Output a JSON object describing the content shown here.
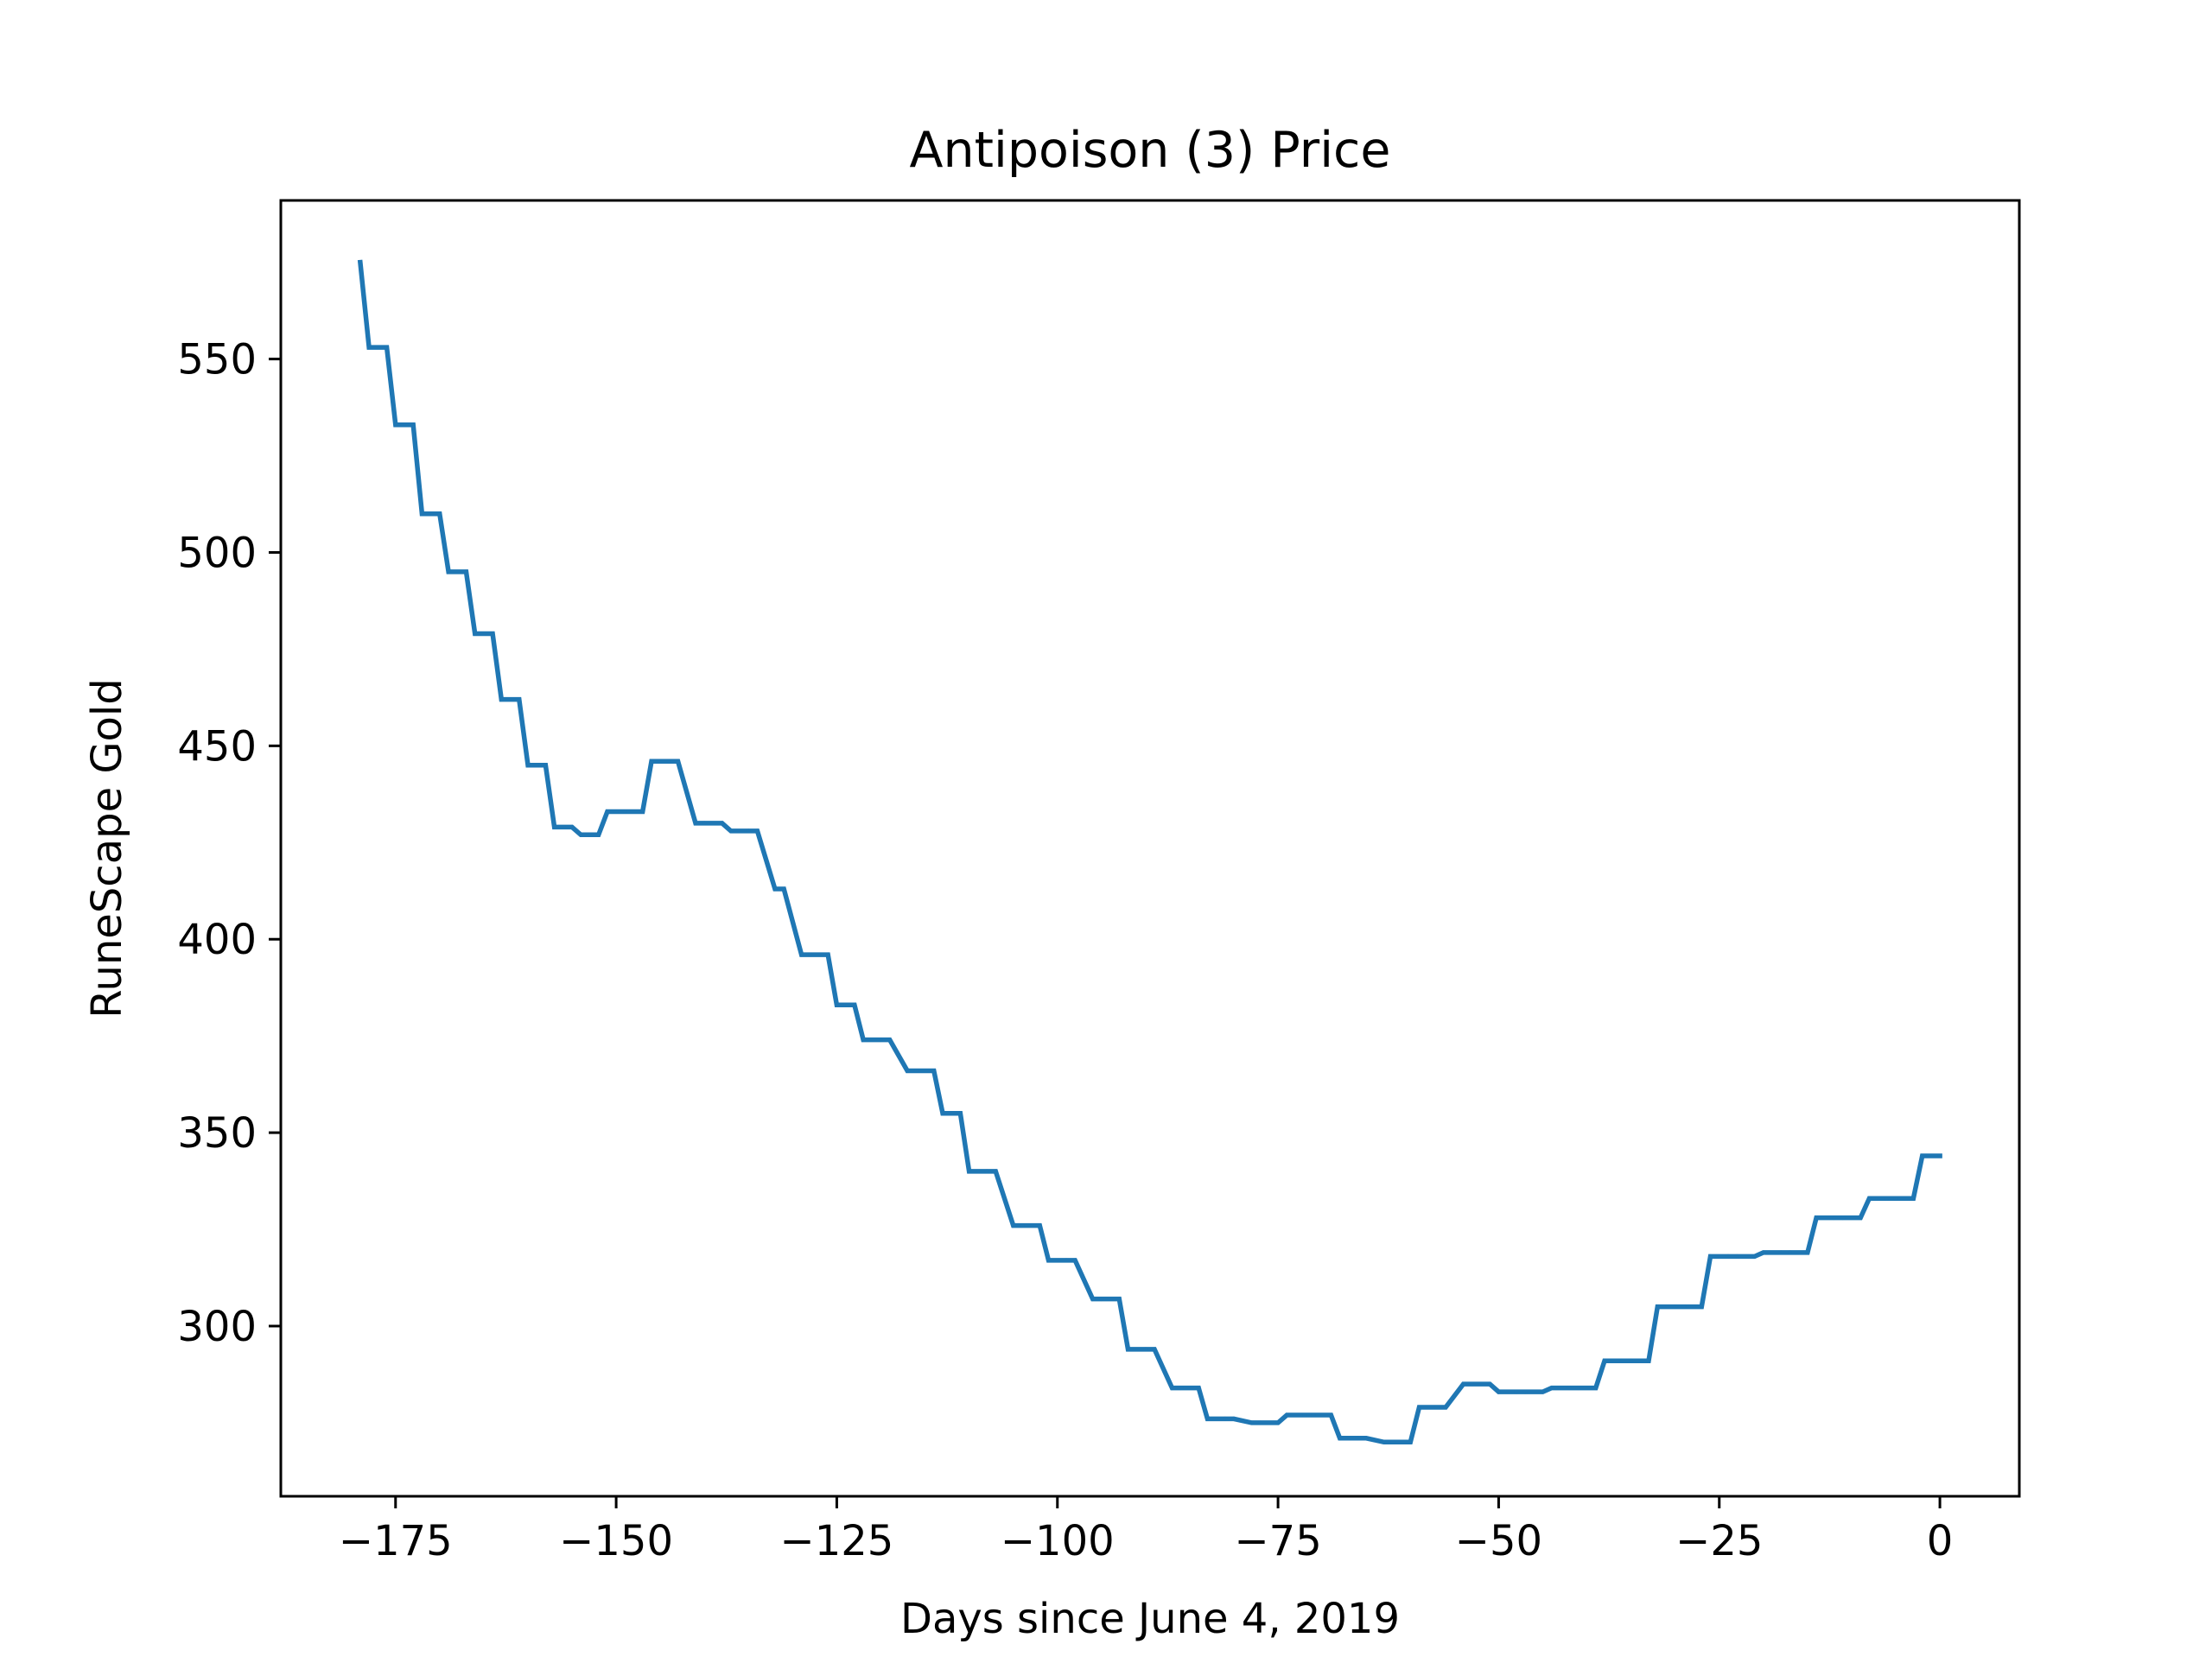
{
  "chart_data": {
    "type": "line",
    "title": "Antipoison (3) Price",
    "xlabel": "Days since June 4, 2019",
    "ylabel": "RuneScape Gold",
    "xlim": [
      -188,
      9
    ],
    "ylim": [
      256,
      591
    ],
    "xticks": [
      -175,
      -150,
      -125,
      -100,
      -75,
      -50,
      -25,
      0
    ],
    "xtick_labels": [
      "−175",
      "−150",
      "−125",
      "−100",
      "−75",
      "−50",
      "−25",
      "0"
    ],
    "yticks": [
      300,
      350,
      400,
      450,
      500,
      550
    ],
    "ytick_labels": [
      "300",
      "350",
      "400",
      "450",
      "500",
      "550"
    ],
    "grid": false,
    "line_color": "#1f77b4",
    "x": [
      -179,
      -178,
      -176,
      -175,
      -173,
      -172,
      -170,
      -169,
      -167,
      -166,
      -164,
      -163,
      -161,
      -160,
      -158,
      -157,
      -155,
      -154,
      -153,
      -152,
      -151,
      -150,
      -149,
      -147,
      -146,
      -144,
      -143,
      -141,
      -140,
      -138,
      -137,
      -135,
      -134,
      -132,
      -131,
      -129,
      -128,
      -126,
      -125,
      -123,
      -122,
      -120,
      -119,
      -117,
      -116,
      -114,
      -113,
      -111,
      -110,
      -108,
      -107,
      -105,
      -104,
      -102,
      -101,
      -99,
      -98,
      -96,
      -95,
      -93,
      -92,
      -90,
      -89,
      -87,
      -86,
      -84,
      -83,
      -81,
      -80,
      -78,
      -77,
      -75,
      -74,
      -72,
      -71,
      -69,
      -68,
      -66,
      -65,
      -63,
      -62,
      -60,
      -59,
      -57,
      -56,
      -54,
      -53,
      -51,
      -50,
      -48,
      -47,
      -45,
      -44,
      -42,
      -41,
      -39,
      -38,
      -36,
      -35,
      -33,
      -32,
      -30,
      -29,
      -27,
      -26,
      -24,
      -23,
      -21,
      -20,
      -18,
      -17,
      -15,
      -14,
      -12,
      -11,
      -9,
      -8,
      -6,
      -5,
      -3,
      -2,
      0
    ],
    "values": [
      575,
      553,
      553,
      533,
      533,
      510,
      510,
      495,
      495,
      479,
      479,
      462,
      462,
      445,
      445,
      429,
      429,
      427,
      427,
      427,
      433,
      433,
      433,
      433,
      446,
      446,
      446,
      430,
      430,
      430,
      428,
      428,
      428,
      413,
      413,
      396,
      396,
      396,
      383,
      383,
      374,
      374,
      374,
      366,
      366,
      366,
      355,
      355,
      340,
      340,
      340,
      326,
      326,
      326,
      317,
      317,
      317,
      307,
      307,
      307,
      294,
      294,
      294,
      284,
      284,
      284,
      276,
      276,
      276,
      275,
      275,
      275,
      277,
      277,
      277,
      277,
      271,
      271,
      271,
      270,
      270,
      270,
      279,
      279,
      279,
      285,
      285,
      285,
      283,
      283,
      283,
      283,
      284,
      284,
      284,
      284,
      291,
      291,
      291,
      291,
      305,
      305,
      305,
      305,
      318,
      318,
      318,
      318,
      319,
      319,
      319,
      319,
      328,
      328,
      328,
      328,
      333,
      333,
      333,
      333,
      344,
      344
    ]
  }
}
